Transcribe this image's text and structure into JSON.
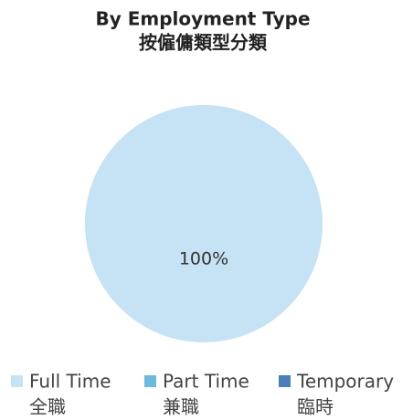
{
  "chart_data": {
    "type": "pie",
    "title": "By Employment Type",
    "subtitle": "按僱傭類型分類",
    "categories": [
      "Full Time",
      "Part Time",
      "Temporary"
    ],
    "categories_zh": [
      "全職",
      "兼職",
      "臨時"
    ],
    "values": [
      100,
      0,
      0
    ],
    "value_labels": [
      "100%",
      null,
      null
    ],
    "colors": [
      "#c5e3f4",
      "#6bb9dc",
      "#4a7fb8"
    ],
    "legend": "bottom"
  }
}
